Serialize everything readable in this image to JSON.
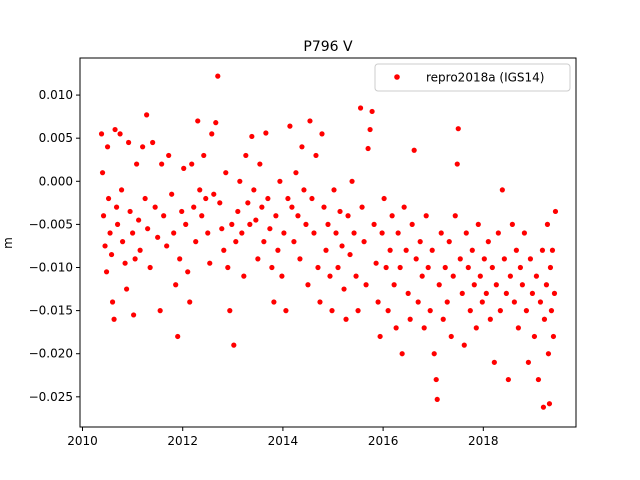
{
  "chart_data": {
    "type": "scatter",
    "title": "P796 V",
    "xlabel": "",
    "ylabel": "m",
    "xlim": [
      2009.95,
      2019.85
    ],
    "ylim": [
      -0.0285,
      0.0143
    ],
    "xticks": [
      2010,
      2012,
      2014,
      2016,
      2018
    ],
    "xtick_labels": [
      "2010",
      "2012",
      "2014",
      "2016",
      "2018"
    ],
    "yticks": [
      0.01,
      0.005,
      0.0,
      -0.005,
      -0.01,
      -0.015,
      -0.02,
      -0.025
    ],
    "ytick_labels": [
      "0.010",
      "0.005",
      "0.000",
      "−0.005",
      "−0.010",
      "−0.015",
      "−0.020",
      "−0.025"
    ],
    "grid": false,
    "legend_position": "top-right",
    "series": [
      {
        "name": "repro2018a (IGS14)",
        "color": "#ff0000",
        "marker": "circle",
        "note_sampling": "representative subset of daily points",
        "points": [
          [
            2010.38,
            0.0055
          ],
          [
            2010.4,
            0.001
          ],
          [
            2010.42,
            -0.004
          ],
          [
            2010.45,
            -0.0075
          ],
          [
            2010.48,
            -0.0105
          ],
          [
            2010.5,
            0.004
          ],
          [
            2010.52,
            -0.002
          ],
          [
            2010.55,
            -0.006
          ],
          [
            2010.58,
            -0.0085
          ],
          [
            2010.6,
            -0.014
          ],
          [
            2010.63,
            -0.016
          ],
          [
            2010.65,
            0.006
          ],
          [
            2010.68,
            -0.003
          ],
          [
            2010.7,
            -0.005
          ],
          [
            2010.75,
            0.0055
          ],
          [
            2010.78,
            -0.001
          ],
          [
            2010.8,
            -0.007
          ],
          [
            2010.85,
            -0.0095
          ],
          [
            2010.88,
            -0.0125
          ],
          [
            2010.92,
            0.0045
          ],
          [
            2010.95,
            -0.0035
          ],
          [
            2011.0,
            -0.006
          ],
          [
            2011.02,
            -0.0155
          ],
          [
            2011.05,
            -0.009
          ],
          [
            2011.08,
            0.002
          ],
          [
            2011.12,
            -0.0045
          ],
          [
            2011.15,
            -0.008
          ],
          [
            2011.2,
            0.004
          ],
          [
            2011.25,
            -0.002
          ],
          [
            2011.28,
            0.0077
          ],
          [
            2011.3,
            -0.0055
          ],
          [
            2011.35,
            -0.01
          ],
          [
            2011.4,
            0.0045
          ],
          [
            2011.45,
            -0.003
          ],
          [
            2011.5,
            -0.0065
          ],
          [
            2011.55,
            -0.015
          ],
          [
            2011.58,
            0.002
          ],
          [
            2011.62,
            -0.004
          ],
          [
            2011.68,
            -0.0075
          ],
          [
            2011.72,
            0.003
          ],
          [
            2011.78,
            -0.0015
          ],
          [
            2011.82,
            -0.006
          ],
          [
            2011.86,
            -0.012
          ],
          [
            2011.9,
            -0.018
          ],
          [
            2011.94,
            -0.009
          ],
          [
            2011.98,
            -0.0035
          ],
          [
            2012.02,
            0.0015
          ],
          [
            2012.06,
            -0.005
          ],
          [
            2012.1,
            -0.0105
          ],
          [
            2012.14,
            -0.014
          ],
          [
            2012.18,
            0.002
          ],
          [
            2012.22,
            -0.003
          ],
          [
            2012.26,
            -0.007
          ],
          [
            2012.3,
            0.007
          ],
          [
            2012.34,
            -0.001
          ],
          [
            2012.38,
            -0.004
          ],
          [
            2012.42,
            0.003
          ],
          [
            2012.46,
            -0.002
          ],
          [
            2012.5,
            -0.006
          ],
          [
            2012.54,
            -0.0095
          ],
          [
            2012.58,
            0.0055
          ],
          [
            2012.62,
            -0.0015
          ],
          [
            2012.66,
            0.0068
          ],
          [
            2012.7,
            0.0122
          ],
          [
            2012.74,
            -0.0025
          ],
          [
            2012.78,
            -0.0055
          ],
          [
            2012.82,
            -0.008
          ],
          [
            2012.86,
            0.001
          ],
          [
            2012.9,
            -0.01
          ],
          [
            2012.94,
            -0.015
          ],
          [
            2012.98,
            -0.005
          ],
          [
            2013.02,
            -0.019
          ],
          [
            2013.06,
            -0.007
          ],
          [
            2013.1,
            -0.0035
          ],
          [
            2013.14,
            0.0
          ],
          [
            2013.18,
            -0.006
          ],
          [
            2013.22,
            -0.011
          ],
          [
            2013.26,
            0.003
          ],
          [
            2013.3,
            -0.0025
          ],
          [
            2013.34,
            -0.005
          ],
          [
            2013.38,
            0.0052
          ],
          [
            2013.42,
            -0.001
          ],
          [
            2013.46,
            -0.0045
          ],
          [
            2013.5,
            -0.009
          ],
          [
            2013.54,
            0.002
          ],
          [
            2013.58,
            -0.003
          ],
          [
            2013.62,
            -0.007
          ],
          [
            2013.66,
            0.0056
          ],
          [
            2013.7,
            -0.002
          ],
          [
            2013.74,
            -0.0055
          ],
          [
            2013.78,
            -0.01
          ],
          [
            2013.82,
            -0.014
          ],
          [
            2013.86,
            -0.004
          ],
          [
            2013.9,
            -0.008
          ],
          [
            2013.94,
            0.0
          ],
          [
            2013.98,
            -0.011
          ],
          [
            2014.02,
            -0.006
          ],
          [
            2014.06,
            -0.015
          ],
          [
            2014.1,
            -0.002
          ],
          [
            2014.14,
            0.0064
          ],
          [
            2014.18,
            -0.003
          ],
          [
            2014.22,
            -0.007
          ],
          [
            2014.26,
            0.001
          ],
          [
            2014.3,
            -0.004
          ],
          [
            2014.34,
            -0.009
          ],
          [
            2014.38,
            0.004
          ],
          [
            2014.42,
            -0.001
          ],
          [
            2014.46,
            -0.005
          ],
          [
            2014.5,
            -0.012
          ],
          [
            2014.54,
            0.007
          ],
          [
            2014.58,
            -0.002
          ],
          [
            2014.62,
            -0.006
          ],
          [
            2014.66,
            0.003
          ],
          [
            2014.7,
            -0.01
          ],
          [
            2014.74,
            -0.014
          ],
          [
            2014.78,
            0.0055
          ],
          [
            2014.82,
            -0.003
          ],
          [
            2014.86,
            -0.008
          ],
          [
            2014.9,
            -0.005
          ],
          [
            2014.94,
            -0.011
          ],
          [
            2014.98,
            -0.015
          ],
          [
            2015.02,
            -0.001
          ],
          [
            2015.06,
            -0.006
          ],
          [
            2015.1,
            -0.01
          ],
          [
            2015.14,
            -0.0035
          ],
          [
            2015.18,
            -0.0075
          ],
          [
            2015.22,
            -0.0125
          ],
          [
            2015.26,
            -0.016
          ],
          [
            2015.3,
            -0.004
          ],
          [
            2015.34,
            -0.0085
          ],
          [
            2015.38,
            0.0
          ],
          [
            2015.42,
            -0.006
          ],
          [
            2015.46,
            -0.011
          ],
          [
            2015.5,
            -0.015
          ],
          [
            2015.55,
            0.0085
          ],
          [
            2015.58,
            -0.003
          ],
          [
            2015.62,
            -0.007
          ],
          [
            2015.66,
            -0.012
          ],
          [
            2015.7,
            0.0038
          ],
          [
            2015.74,
            0.006
          ],
          [
            2015.78,
            0.0081
          ],
          [
            2015.82,
            -0.005
          ],
          [
            2015.86,
            -0.0095
          ],
          [
            2015.9,
            -0.014
          ],
          [
            2015.94,
            -0.018
          ],
          [
            2015.98,
            -0.006
          ],
          [
            2016.02,
            -0.002
          ],
          [
            2016.06,
            -0.01
          ],
          [
            2016.1,
            -0.015
          ],
          [
            2016.14,
            -0.008
          ],
          [
            2016.18,
            -0.004
          ],
          [
            2016.22,
            -0.012
          ],
          [
            2016.26,
            -0.017
          ],
          [
            2016.3,
            -0.006
          ],
          [
            2016.34,
            -0.01
          ],
          [
            2016.38,
            -0.02
          ],
          [
            2016.42,
            -0.003
          ],
          [
            2016.46,
            -0.008
          ],
          [
            2016.5,
            -0.013
          ],
          [
            2016.54,
            -0.016
          ],
          [
            2016.58,
            -0.005
          ],
          [
            2016.62,
            0.0036
          ],
          [
            2016.66,
            -0.009
          ],
          [
            2016.7,
            -0.014
          ],
          [
            2016.74,
            -0.007
          ],
          [
            2016.78,
            -0.011
          ],
          [
            2016.82,
            -0.017
          ],
          [
            2016.86,
            -0.004
          ],
          [
            2016.9,
            -0.01
          ],
          [
            2016.94,
            -0.015
          ],
          [
            2016.98,
            -0.008
          ],
          [
            2017.02,
            -0.02
          ],
          [
            2017.06,
            -0.023
          ],
          [
            2017.08,
            -0.0253
          ],
          [
            2017.12,
            -0.012
          ],
          [
            2017.16,
            -0.006
          ],
          [
            2017.2,
            -0.016
          ],
          [
            2017.24,
            -0.01
          ],
          [
            2017.28,
            -0.014
          ],
          [
            2017.32,
            -0.007
          ],
          [
            2017.36,
            -0.018
          ],
          [
            2017.4,
            -0.011
          ],
          [
            2017.44,
            -0.004
          ],
          [
            2017.48,
            0.002
          ],
          [
            2017.5,
            0.0061
          ],
          [
            2017.54,
            -0.009
          ],
          [
            2017.58,
            -0.013
          ],
          [
            2017.62,
            -0.019
          ],
          [
            2017.66,
            -0.006
          ],
          [
            2017.7,
            -0.01
          ],
          [
            2017.74,
            -0.015
          ],
          [
            2017.78,
            -0.008
          ],
          [
            2017.82,
            -0.012
          ],
          [
            2017.86,
            -0.017
          ],
          [
            2017.9,
            -0.005
          ],
          [
            2017.94,
            -0.011
          ],
          [
            2017.98,
            -0.014
          ],
          [
            2018.02,
            -0.009
          ],
          [
            2018.06,
            -0.013
          ],
          [
            2018.1,
            -0.007
          ],
          [
            2018.14,
            -0.016
          ],
          [
            2018.18,
            -0.01
          ],
          [
            2018.22,
            -0.021
          ],
          [
            2018.26,
            -0.012
          ],
          [
            2018.3,
            -0.006
          ],
          [
            2018.34,
            -0.015
          ],
          [
            2018.38,
            -0.001
          ],
          [
            2018.42,
            -0.009
          ],
          [
            2018.46,
            -0.013
          ],
          [
            2018.5,
            -0.023
          ],
          [
            2018.54,
            -0.011
          ],
          [
            2018.58,
            -0.005
          ],
          [
            2018.62,
            -0.014
          ],
          [
            2018.66,
            -0.008
          ],
          [
            2018.7,
            -0.017
          ],
          [
            2018.74,
            -0.01
          ],
          [
            2018.78,
            -0.012
          ],
          [
            2018.82,
            -0.006
          ],
          [
            2018.86,
            -0.015
          ],
          [
            2018.9,
            -0.021
          ],
          [
            2018.94,
            -0.009
          ],
          [
            2018.98,
            -0.013
          ],
          [
            2019.02,
            -0.018
          ],
          [
            2019.06,
            -0.011
          ],
          [
            2019.1,
            -0.023
          ],
          [
            2019.14,
            -0.014
          ],
          [
            2019.18,
            -0.008
          ],
          [
            2019.2,
            -0.0262
          ],
          [
            2019.22,
            -0.016
          ],
          [
            2019.26,
            -0.012
          ],
          [
            2019.28,
            -0.005
          ],
          [
            2019.3,
            -0.02
          ],
          [
            2019.32,
            -0.0258
          ],
          [
            2019.34,
            -0.01
          ],
          [
            2019.36,
            -0.015
          ],
          [
            2019.38,
            -0.008
          ],
          [
            2019.4,
            -0.018
          ],
          [
            2019.42,
            -0.013
          ],
          [
            2019.44,
            -0.0035
          ]
        ]
      }
    ]
  }
}
